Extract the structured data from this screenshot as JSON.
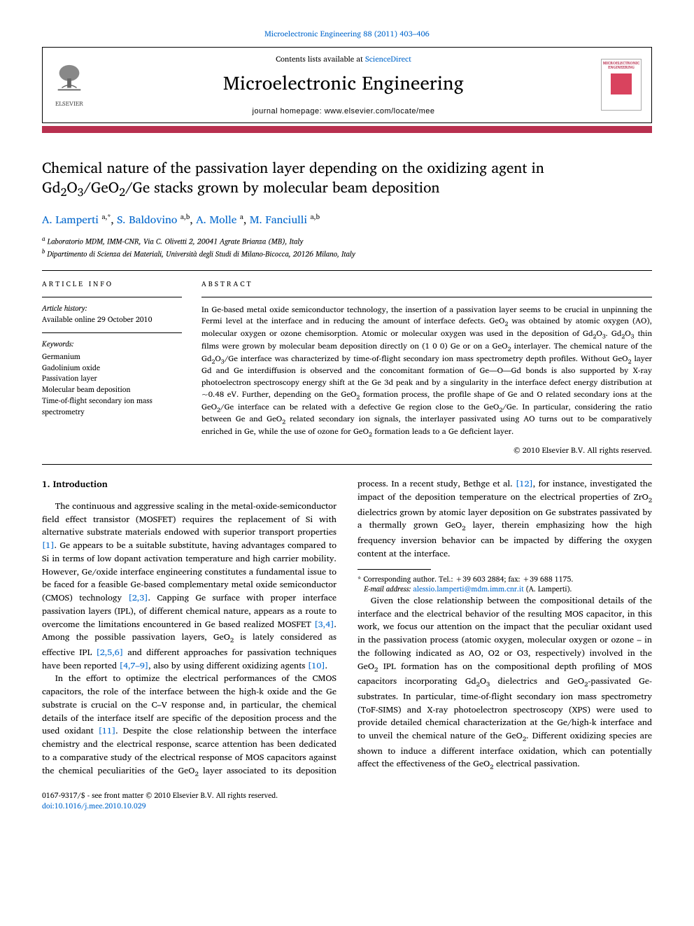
{
  "journal_ref_link": "Microelectronic Engineering 88 (2011) 403–406",
  "header": {
    "contents_at_prefix": "Contents lists available at ",
    "contents_at_link": "ScienceDirect",
    "journal_title": "Microelectronic Engineering",
    "journal_home": "journal homepage: www.elsevier.com/locate/mee",
    "publisher_name": "ELSEVIER",
    "cover_text": "MICROELECTRONIC ENGINEERING"
  },
  "colors": {
    "accent": "#b8304f",
    "link": "#0066cc"
  },
  "article": {
    "title_html": "Chemical nature of the passivation layer depending on the oxidizing agent in Gd<sub>2</sub>O<sub>3</sub>/GeO<sub>2</sub>/Ge stacks grown by molecular beam deposition",
    "authors_html": "<a href=\"#\">A. Lamperti</a> <sup>a,*</sup>, <a href=\"#\">S. Baldovino</a> <sup>a,b</sup>, <a href=\"#\">A. Molle</a> <sup>a</sup>, <a href=\"#\">M. Fanciulli</a> <sup>a,b</sup>",
    "affiliations": [
      "a Laboratorio MDM, IMM-CNR, Via C. Olivetti 2, 20041 Agrate Brianza (MB), Italy",
      "b Dipartimento di Scienza dei Materiali, Università degli Studi di Milano-Bicocca, 20126 Milano, Italy"
    ]
  },
  "info": {
    "section_label": "article info",
    "history_label": "Article history:",
    "history_line": "Available online 29 October 2010",
    "keywords_label": "Keywords:",
    "keywords": [
      "Germanium",
      "Gadolinium oxide",
      "Passivation layer",
      "Molecular beam deposition",
      "Time-of-flight secondary ion mass spectrometry"
    ]
  },
  "abstract": {
    "section_label": "abstract",
    "text_html": "In Ge-based metal oxide semiconductor technology, the insertion of a passivation layer seems to be crucial in unpinning the Fermi level at the interface and in reducing the amount of interface defects. GeO<sub>2</sub> was obtained by atomic oxygen (AO), molecular oxygen or ozone chemisorption. Atomic or molecular oxygen was used in the deposition of Gd<sub>2</sub>O<sub>3</sub>. Gd<sub>2</sub>O<sub>3</sub> thin films were grown by molecular beam deposition directly on (1 0 0) Ge or on a GeO<sub>2</sub> interlayer. The chemical nature of the Gd<sub>2</sub>O<sub>3</sub>/Ge interface was characterized by time-of-flight secondary ion mass spectrometry depth profiles. Without GeO<sub>2</sub> layer Gd and Ge interdiffusion is observed and the concomitant formation of Ge—O—Gd bonds is also supported by X-ray photoelectron spectroscopy energy shift at the Ge 3d peak and by a singularity in the interface defect energy distribution at ~0.48 eV. Further, depending on the GeO<sub>2</sub> formation process, the profile shape of Ge and O related secondary ions at the GeO<sub>2</sub>/Ge interface can be related with a defective Ge region close to the GeO<sub>2</sub>/Ge. In particular, considering the ratio between Ge and GeO<sub>2</sub> related secondary ion signals, the interlayer passivated using AO turns out to be comparatively enriched in Ge, while the use of ozone for GeO<sub>2</sub> formation leads to a Ge deficient layer.",
    "copyright": "© 2010 Elsevier B.V. All rights reserved."
  },
  "body": {
    "section1_title": "1. Introduction",
    "para1_html": "The continuous and aggressive scaling in the metal-oxide-semiconductor field effect transistor (MOSFET) requires the replacement of Si with alternative substrate materials endowed with superior transport properties <a href=\"#\">[1]</a>. Ge appears to be a suitable substitute, having advantages compared to Si in terms of low dopant activation temperature and high carrier mobility. However, Ge/oxide interface engineering constitutes a fundamental issue to be faced for a feasible Ge-based complementary metal oxide semiconductor (CMOS) technology <a href=\"#\">[2,3]</a>. Capping Ge surface with proper interface passivation layers (IPL), of different chemical nature, appears as a route to overcome the limitations encountered in Ge based realized MOSFET <a href=\"#\">[3,4]</a>. Among the possible passivation layers, GeO<sub>2</sub> is lately considered as effective IPL <a href=\"#\">[2,5,6]</a> and different approaches for passivation techniques have been reported <a href=\"#\">[4,7–9]</a>, also by using different oxidizing agents <a href=\"#\">[10]</a>.",
    "para2_html": "In the effort to optimize the electrical performances of the CMOS capacitors, the role of the interface between the high-k oxide and the Ge substrate is crucial on the C–V response and, in particular, the chemical details of the interface itself are specific of the deposition process and the used oxidant <a href=\"#\">[11]</a>. Despite the close relationship between the interface chemistry and the electrical response, scarce attention has been dedicated to a comparative study of the electrical response of MOS capacitors against the chemical peculiarities of the GeO<sub>2</sub> layer associated to its deposition process. In a recent study, Bethge et al. <a href=\"#\">[12]</a>, for instance, investigated the impact of the deposition temperature on the electrical properties of ZrO<sub>2</sub> dielectrics grown by atomic layer deposition on Ge substrates passivated by a thermally grown GeO<sub>2</sub> layer, therein emphasizing how the high frequency inversion behavior can be impacted by differing the oxygen content at the interface.",
    "para3_html": "Given the close relationship between the compositional details of the interface and the electrical behavior of the resulting MOS capacitor, in this work, we focus our attention on the impact that the peculiar oxidant used in the passivation process (atomic oxygen, molecular oxygen or ozone – in the following indicated as AO, O2 or O3, respectively) involved in the GeO<sub>2</sub> IPL formation has on the compositional depth profiling of MOS capacitors incorporating Gd<sub>2</sub>O<sub>3</sub> dielectrics and GeO<sub>2</sub>-passivated Ge-substrates. In particular, time-of-flight secondary ion mass spectrometry (ToF-SIMS) and X-ray photoelectron spectroscopy (XPS) were used to provide detailed chemical characterization at the Ge/high-k interface and to unveil the chemical nature of the GeO<sub>2</sub>. Different oxidizing species are shown to induce a different interface oxidation, which can potentially affect the effectiveness of the GeO<sub>2</sub> electrical passivation."
  },
  "footnotes": {
    "corr": "* Corresponding author. Tel.: +39 603 2884; fax: +39 688 1175.",
    "email_label": "E-mail address:",
    "email": "alessio.lamperti@mdm.imm.cnr.it",
    "email_tail": " (A. Lamperti)."
  },
  "bottom": {
    "issn": "0167-9317/$ - see front matter © 2010 Elsevier B.V. All rights reserved.",
    "doi": "doi:10.1016/j.mee.2010.10.029"
  }
}
